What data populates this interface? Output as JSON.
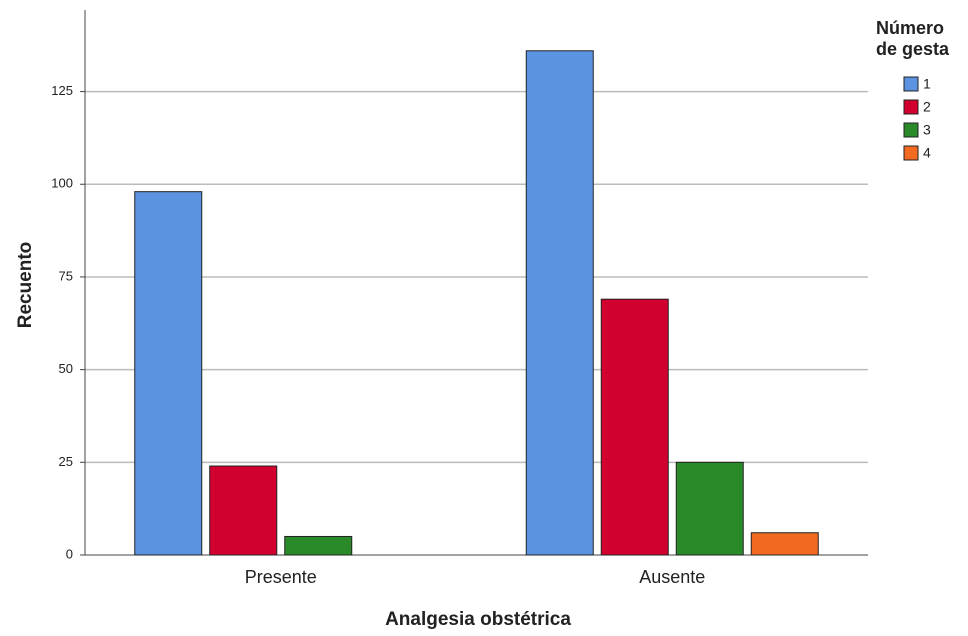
{
  "chart_data": {
    "type": "bar",
    "x_label": "Analgesia obstétrica",
    "y_label": "Recuento",
    "legend_title": "Número de gesta",
    "categories": [
      "Presente",
      "Ausente"
    ],
    "series": [
      {
        "name": "1",
        "color": "#5b93e0",
        "values": [
          98,
          136
        ]
      },
      {
        "name": "2",
        "color": "#d2002e",
        "values": [
          24,
          69
        ]
      },
      {
        "name": "3",
        "color": "#2a8a2a",
        "values": [
          5,
          25
        ]
      },
      {
        "name": "4",
        "color": "#f26a21",
        "values": [
          null,
          6
        ]
      }
    ],
    "ylim": [
      0,
      147
    ],
    "yticks": [
      0,
      25,
      50,
      75,
      100,
      125
    ],
    "grid": true,
    "legend": "right"
  }
}
